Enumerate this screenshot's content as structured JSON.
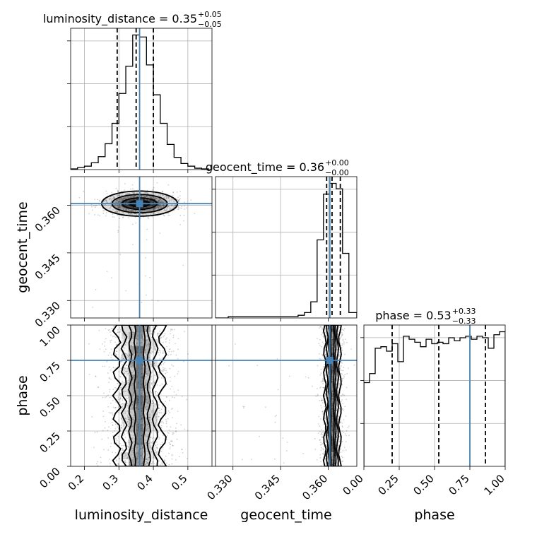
{
  "chart_data": {
    "type": "corner",
    "parameters": [
      "luminosity_distance",
      "geocent_time",
      "phase"
    ],
    "truths": [
      0.36,
      0.3605,
      0.75
    ],
    "truth_color": "#4682b4",
    "ranges": [
      [
        0.16,
        0.57
      ],
      [
        0.3245,
        0.369
      ],
      [
        0.0,
        1.0
      ]
    ],
    "ticks": {
      "luminosity_distance": [
        0.2,
        0.3,
        0.4,
        0.5
      ],
      "geocent_time": [
        0.33,
        0.345,
        0.36
      ],
      "phase": [
        0.0,
        0.25,
        0.5,
        0.75,
        1.0
      ]
    },
    "tick_labels": {
      "luminosity_distance": [
        "0.2",
        "0.3",
        "0.4",
        "0.5"
      ],
      "geocent_time": [
        "0.330",
        "0.345",
        "0.360"
      ],
      "phase": [
        "0.00",
        "0.25",
        "0.50",
        "0.75",
        "1.00"
      ]
    },
    "titles": [
      {
        "param": "luminosity_distance",
        "text": "luminosity_distance = 0.35",
        "plus": "+0.05",
        "minus": "−0.05"
      },
      {
        "param": "geocent_time",
        "text": "geocent_time = 0.36",
        "plus": "+0.00",
        "minus": "−0.00"
      },
      {
        "param": "phase",
        "text": "phase = 0.53",
        "plus": "+0.33",
        "minus": "−0.33"
      }
    ],
    "quantiles": {
      "luminosity_distance": [
        0.295,
        0.35,
        0.4
      ],
      "geocent_time": [
        0.3595,
        0.3612,
        0.3638
      ],
      "phase": [
        0.2,
        0.53,
        0.86
      ]
    },
    "histograms": {
      "luminosity_distance": {
        "edges": [
          0.16,
          0.18,
          0.2,
          0.22,
          0.24,
          0.26,
          0.28,
          0.3,
          0.32,
          0.34,
          0.36,
          0.38,
          0.4,
          0.42,
          0.44,
          0.46,
          0.48,
          0.5,
          0.52,
          0.54,
          0.56
        ],
        "counts": [
          1,
          3,
          5,
          10,
          19,
          38,
          68,
          112,
          152,
          198,
          195,
          154,
          110,
          68,
          37,
          18,
          9,
          5,
          2,
          1
        ]
      },
      "geocent_time": {
        "edges": [
          0.3245,
          0.3265,
          0.3285,
          0.3305,
          0.3325,
          0.3345,
          0.3365,
          0.3385,
          0.3405,
          0.3425,
          0.3445,
          0.3465,
          0.3485,
          0.3505,
          0.3525,
          0.3545,
          0.3565,
          0.3585,
          0.3605,
          0.3625,
          0.3645,
          0.3665,
          0.369
        ],
        "counts": [
          0,
          0,
          1,
          1,
          1,
          1,
          1,
          1,
          1,
          1,
          1,
          1,
          1,
          2,
          4,
          12,
          58,
          92,
          100,
          96,
          48,
          4
        ]
      },
      "phase": {
        "edges": [
          0.0,
          0.04,
          0.08,
          0.12,
          0.16,
          0.2,
          0.24,
          0.28,
          0.32,
          0.36,
          0.4,
          0.44,
          0.48,
          0.52,
          0.56,
          0.6,
          0.64,
          0.68,
          0.72,
          0.76,
          0.8,
          0.84,
          0.88,
          0.92,
          0.96,
          1.0
        ],
        "counts": [
          56,
          62,
          79,
          80,
          77,
          82,
          70,
          87,
          85,
          83,
          80,
          85,
          82,
          83,
          82,
          86,
          84,
          86,
          87,
          85,
          87,
          86,
          79,
          88,
          90
        ]
      }
    },
    "joint": [
      {
        "x": "luminosity_distance",
        "y": "geocent_time",
        "center": [
          0.36,
          0.3605
        ],
        "sigma": [
          0.05,
          0.0018
        ]
      },
      {
        "x": "luminosity_distance",
        "y": "phase",
        "center": [
          0.36,
          0.53
        ],
        "sigma": [
          0.05,
          0.29
        ]
      },
      {
        "x": "geocent_time",
        "y": "phase",
        "center": [
          0.3613,
          0.53
        ],
        "sigma": [
          0.0018,
          0.29
        ]
      }
    ],
    "grid": true
  }
}
